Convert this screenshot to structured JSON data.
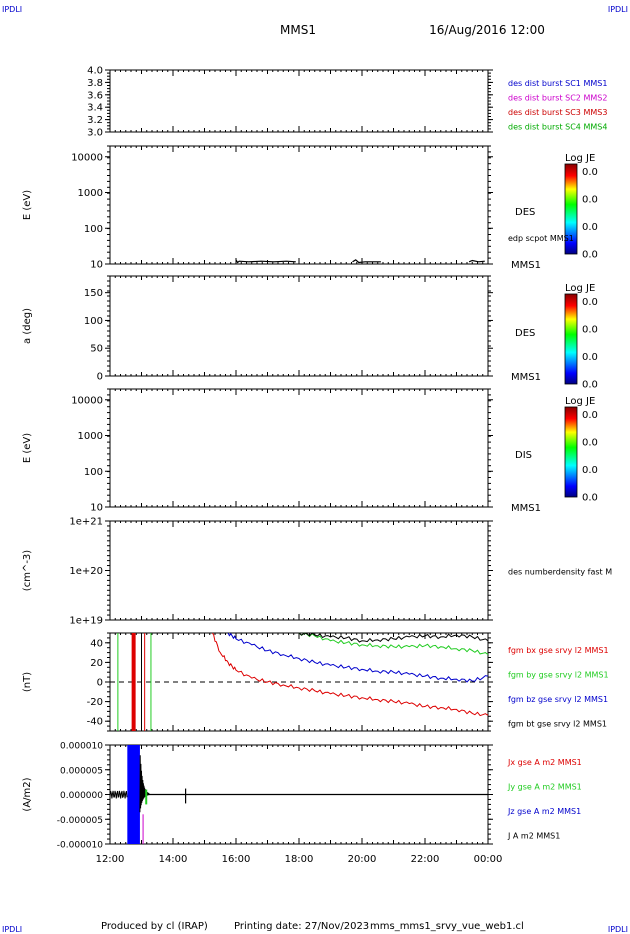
{
  "corner_labels": {
    "top_left": "IPDLI",
    "top_right": "IPDLI",
    "bottom_left": "IPDLI",
    "bottom_right": "IPDLI"
  },
  "header": {
    "spacecraft": "MMS1",
    "date": "16/Aug/2016 12:00"
  },
  "footer": {
    "produced_by": "Produced by cl (IRAP)",
    "printing_date": "Printing date: 27/Nov/2023",
    "filename": "mms_mms1_srvy_vue_web1.cl"
  },
  "colors": {
    "mms1": "#0000cc",
    "mms2": "#cc00cc",
    "mms3": "#cc0000",
    "mms4": "#00aa00",
    "bx": "#dd0000",
    "by": "#22cc22",
    "bz": "#0000cc",
    "bt": "#000000"
  },
  "chart_data": [
    {
      "type": "line",
      "panel": "burst-availability",
      "ylabel": "",
      "ylim": [
        3.0,
        4.0
      ],
      "yticks": [
        "4.0",
        "3.8",
        "3.6",
        "3.4",
        "3.2",
        "3.0"
      ],
      "legend": [
        {
          "label": "des dist burst SC1 MMS1",
          "color": "#0000cc"
        },
        {
          "label": "des dist burst SC2 MMS2",
          "color": "#cc00cc"
        },
        {
          "label": "des dist burst SC3 MMS3",
          "color": "#cc0000"
        },
        {
          "label": "des dist burst SC4 MMS4",
          "color": "#00aa00"
        }
      ]
    },
    {
      "type": "heatmap",
      "panel": "des-energy",
      "ylabel": "E (eV)",
      "yscale": "log",
      "ylim": [
        10,
        20000
      ],
      "yticks": [
        "10000",
        "1000",
        "100",
        "10"
      ],
      "label": "DES",
      "spacecraft": "MMS1",
      "colorbar": {
        "title": "Log JE",
        "ticks": [
          "0.0",
          "0.0",
          "0.0",
          "0.0"
        ]
      },
      "overlay": {
        "label": "edp scpot MMS1",
        "x_hours": [
          16.0,
          16.05,
          16.1,
          16.4,
          16.8,
          17.2,
          17.6,
          17.9,
          19.7,
          19.8,
          19.9,
          20.1,
          20.6,
          21.3,
          23.4,
          23.5,
          23.7,
          23.9
        ],
        "y": [
          13,
          11,
          12,
          11.5,
          12,
          11.5,
          12,
          11.5,
          11.5,
          13,
          11,
          11.5,
          11.5,
          11.5,
          11.5,
          12.5,
          11.5,
          12
        ]
      }
    },
    {
      "type": "heatmap",
      "panel": "des-pitch-angle",
      "ylabel": "a (deg)",
      "ylim": [
        0,
        180
      ],
      "yticks": [
        "150",
        "100",
        "50",
        "0"
      ],
      "label": "DES",
      "spacecraft": "MMS1",
      "colorbar": {
        "title": "Log JE",
        "ticks": [
          "0.0",
          "0.0",
          "0.0",
          "0.0"
        ]
      }
    },
    {
      "type": "heatmap",
      "panel": "dis-energy",
      "ylabel": "E (eV)",
      "yscale": "log",
      "ylim": [
        10,
        20000
      ],
      "yticks": [
        "10000",
        "1000",
        "100",
        "10"
      ],
      "label": "DIS",
      "spacecraft": "MMS1",
      "colorbar": {
        "title": "Log JE",
        "ticks": [
          "0.0",
          "0.0",
          "0.0",
          "0.0"
        ]
      }
    },
    {
      "type": "line",
      "panel": "density",
      "ylabel": "(cm^-3)",
      "yscale": "log",
      "ylim": [
        1e+19,
        1e+21
      ],
      "yticks": [
        "1e+21",
        "1e+20",
        "1e+19"
      ],
      "legend": [
        {
          "label": "des numberdensity fast M",
          "color": "#000000"
        }
      ]
    },
    {
      "type": "line",
      "panel": "magnetic-field",
      "ylabel": "(nT)",
      "ylim": [
        -50,
        50
      ],
      "yticks": [
        "40",
        "20",
        "0",
        "-20",
        "-40"
      ],
      "legend": [
        {
          "label": "fgm bx gse srvy l2 MMS1",
          "color": "#dd0000"
        },
        {
          "label": "fgm by gse srvy l2 MMS1",
          "color": "#22cc22"
        },
        {
          "label": "fgm bz gse srvy l2 MMS1",
          "color": "#0000cc"
        },
        {
          "label": "fgm bt gse srvy l2 MMS1",
          "color": "#000000"
        }
      ],
      "x_hours": [
        15.25,
        15.5,
        15.75,
        16.0,
        16.5,
        17.0,
        17.5,
        18.0,
        18.5,
        19.0,
        19.5,
        20.0,
        20.5,
        21.0,
        21.5,
        22.0,
        22.5,
        23.0,
        23.5,
        24.0
      ],
      "series": [
        {
          "name": "fgm bx gse srvy l2 MMS1",
          "color": "#dd0000",
          "values": [
            50,
            30,
            20,
            12,
            4,
            0,
            -3,
            -6,
            -9,
            -12,
            -14,
            -16,
            -18,
            -20,
            -22,
            -25,
            -26,
            -28,
            -32,
            -34
          ]
        },
        {
          "name": "fgm by gse srvy l2 MMS1",
          "color": "#22cc22",
          "start_hour": 17.8,
          "values": [
            null,
            null,
            null,
            null,
            null,
            null,
            null,
            50,
            47,
            42,
            40,
            38,
            37,
            36,
            36,
            37,
            36,
            34,
            32,
            28
          ]
        },
        {
          "name": "fgm bz gse srvy l2 MMS1",
          "color": "#0000cc",
          "values": [
            null,
            null,
            50,
            44,
            38,
            32,
            28,
            24,
            20,
            17,
            15,
            13,
            11,
            10,
            8,
            6,
            4,
            3,
            1,
            6
          ]
        },
        {
          "name": "fgm bt gse srvy l2 MMS1",
          "color": "#000000",
          "values": [
            null,
            null,
            null,
            null,
            null,
            null,
            null,
            50,
            48,
            46,
            45,
            42,
            43,
            44,
            46,
            47,
            46,
            48,
            46,
            42
          ]
        }
      ],
      "markers": [
        {
          "x_hour": 12.25,
          "color": "#22cc22"
        },
        {
          "x_hour": 12.75,
          "color": "#dd0000",
          "width": "thick"
        },
        {
          "x_hour": 13.1,
          "color": "#dd0000"
        },
        {
          "x_hour": 13.3,
          "color": "#22cc22"
        },
        {
          "x_hour": 13.0,
          "color": "#000000"
        }
      ]
    },
    {
      "type": "line",
      "panel": "current-density",
      "ylabel": "(A/m2)",
      "ylim": [
        -1e-05,
        1e-05
      ],
      "yticks": [
        "0.000010",
        "0.000005",
        "0.000000",
        "-0.000005",
        "-0.000010"
      ],
      "legend": [
        {
          "label": "Jx gse A m2 MMS1",
          "color": "#dd0000"
        },
        {
          "label": "Jy gse A m2 MMS1",
          "color": "#22cc22"
        },
        {
          "label": "Jz gse A m2 MMS1",
          "color": "#0000cc"
        },
        {
          "label": "J A m2 MMS1",
          "color": "#000000"
        }
      ],
      "burst": {
        "start_hour": 12.55,
        "end_hour": 12.95,
        "color": "#0000ff"
      }
    }
  ],
  "xaxis": {
    "ticks": [
      "12:00",
      "14:00",
      "16:00",
      "18:00",
      "20:00",
      "22:00",
      "00:00"
    ],
    "xlim_hours": [
      12,
      24
    ]
  }
}
